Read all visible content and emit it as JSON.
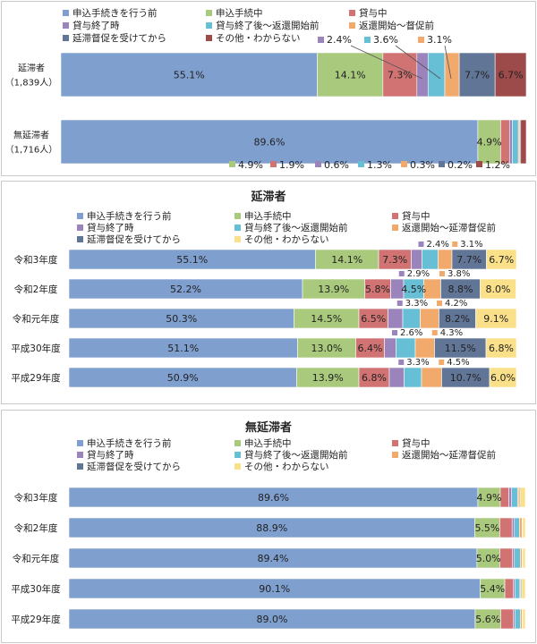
{
  "legend": {
    "items": [
      {
        "label": "申込手続きを行う前",
        "color": "#7f9fcf"
      },
      {
        "label": "申込手続中",
        "color": "#a9c97d"
      },
      {
        "label": "貸与中",
        "color": "#d27373"
      },
      {
        "label": "貸与終了時",
        "color": "#9a84bb"
      },
      {
        "label": "貸与終了後～返還開始前",
        "color": "#66bfd4"
      },
      {
        "label": "返還開始～督促前",
        "color": "#f2aa6c"
      },
      {
        "label": "延滞督促を受けてから",
        "color": "#617597"
      },
      {
        "label": "その他・わからない",
        "color": "#9c4a4a"
      }
    ],
    "items_b": [
      {
        "label": "申込手続きを行う前",
        "color": "#7f9fcf"
      },
      {
        "label": "申込手続中",
        "color": "#a9c97d"
      },
      {
        "label": "貸与中",
        "color": "#d27373"
      },
      {
        "label": "貸与終了時",
        "color": "#9a84bb"
      },
      {
        "label": "貸与終了後～返還開始前",
        "color": "#66bfd4"
      },
      {
        "label": "返還開始～延滞督促前",
        "color": "#f2aa6c"
      },
      {
        "label": "延滞督促を受けてから",
        "color": "#617597"
      },
      {
        "label": "その他・わからない",
        "color": "#fbe08a"
      }
    ]
  },
  "chart_data": [
    {
      "type": "bar",
      "stacked": true,
      "orientation": "horizontal",
      "categories": [
        "延滞者\n（1,839人）",
        "無延滞者\n（1,716人）"
      ],
      "series": [
        {
          "name": "申込手続きを行う前",
          "values": [
            55.1,
            89.6
          ]
        },
        {
          "name": "申込手続中",
          "values": [
            14.1,
            4.9
          ]
        },
        {
          "name": "貸与中",
          "values": [
            7.3,
            1.9
          ]
        },
        {
          "name": "貸与終了時",
          "values": [
            2.4,
            0.6
          ]
        },
        {
          "name": "貸与終了後～返還開始前",
          "values": [
            3.6,
            1.3
          ]
        },
        {
          "name": "返還開始～督促前",
          "values": [
            3.1,
            0.3
          ]
        },
        {
          "name": "延滞督促を受けてから",
          "values": [
            7.7,
            0.2
          ]
        },
        {
          "name": "その他・わからない",
          "values": [
            6.7,
            1.2
          ]
        }
      ],
      "xlim": [
        0,
        100
      ]
    },
    {
      "type": "bar",
      "stacked": true,
      "orientation": "horizontal",
      "title": "延滞者",
      "categories": [
        "令和3年度",
        "令和2年度",
        "令和元年度",
        "平成30年度",
        "平成29年度"
      ],
      "series": [
        {
          "name": "申込手続きを行う前",
          "values": [
            55.1,
            52.2,
            50.3,
            51.1,
            50.9
          ]
        },
        {
          "name": "申込手続中",
          "values": [
            14.1,
            13.9,
            14.5,
            13.0,
            13.9
          ]
        },
        {
          "name": "貸与中",
          "values": [
            7.3,
            5.8,
            6.5,
            6.4,
            6.8
          ]
        },
        {
          "name": "貸与終了時",
          "values": [
            2.4,
            2.9,
            3.3,
            2.6,
            3.3
          ]
        },
        {
          "name": "貸与終了後～返還開始前",
          "values": [
            3.6,
            4.5,
            3.9,
            4.3,
            3.9
          ]
        },
        {
          "name": "返還開始～延滞督促前",
          "values": [
            3.1,
            3.8,
            4.2,
            4.3,
            4.5
          ]
        },
        {
          "name": "延滞督促を受けてから",
          "values": [
            7.7,
            8.8,
            8.2,
            11.5,
            10.7
          ]
        },
        {
          "name": "その他・わからない",
          "values": [
            6.7,
            8.0,
            9.1,
            6.8,
            6.0
          ]
        }
      ],
      "xlim": [
        0,
        100
      ]
    },
    {
      "type": "bar",
      "stacked": true,
      "orientation": "horizontal",
      "title": "無延滞者",
      "categories": [
        "令和3年度",
        "令和2年度",
        "令和元年度",
        "平成30年度",
        "平成29年度"
      ],
      "series": [
        {
          "name": "申込手続きを行う前",
          "values": [
            89.6,
            88.9,
            89.4,
            90.1,
            89.0
          ]
        },
        {
          "name": "申込手続中",
          "values": [
            4.9,
            5.5,
            5.0,
            5.4,
            5.6
          ]
        },
        {
          "name": "貸与中",
          "values": [
            1.9,
            2.7,
            2.8,
            1.9,
            2.8
          ]
        },
        {
          "name": "貸与終了時",
          "values": [
            0.6,
            0.5,
            0.4,
            0.3,
            0.3
          ]
        },
        {
          "name": "貸与終了後～返還開始前",
          "values": [
            1.3,
            1.1,
            1.3,
            1.1,
            1.2
          ]
        },
        {
          "name": "返還開始～延滞督促前",
          "values": [
            0.3,
            0.6,
            0.4,
            0.2,
            0.4
          ]
        },
        {
          "name": "延滞督促を受けてから",
          "values": [
            0.2,
            0.1,
            0.1,
            0.2,
            0.1
          ]
        },
        {
          "name": "その他・わからない",
          "values": [
            1.2,
            0.6,
            0.6,
            0.8,
            0.6
          ]
        }
      ],
      "xlim": [
        0,
        100
      ]
    }
  ]
}
